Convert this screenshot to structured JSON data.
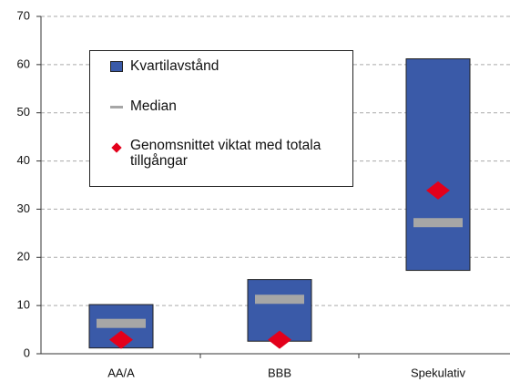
{
  "chart_data": {
    "type": "range",
    "categories": [
      "AA/A",
      "BBB",
      "Spekulativ"
    ],
    "series": [
      {
        "name": "Kvartilavstånd",
        "color": "#3a5aa8",
        "low": [
          1.2,
          2.6,
          17.3
        ],
        "high": [
          10.2,
          15.4,
          61.2
        ]
      },
      {
        "name": "Median",
        "color": "#a6a6a6",
        "values": [
          6.3,
          11.3,
          27.2
        ]
      },
      {
        "name": "Genomsnittet viktat med totala tillgångar",
        "color": "#e3001b",
        "values": [
          2.9,
          2.9,
          33.9
        ]
      }
    ],
    "ylim": [
      0,
      70
    ],
    "yticks": [
      0,
      10,
      20,
      30,
      40,
      50,
      60,
      70
    ],
    "grid": true
  }
}
